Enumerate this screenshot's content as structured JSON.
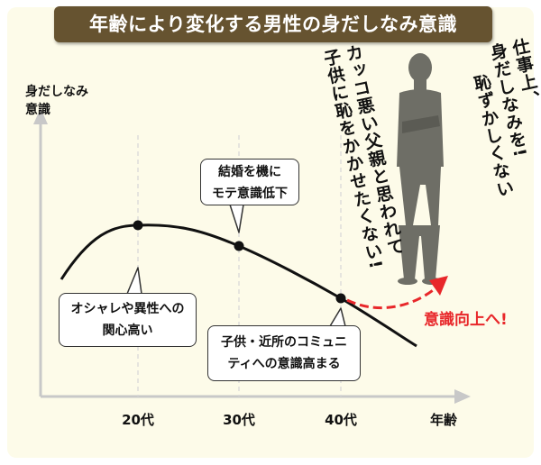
{
  "title": "年齢により変化する男性の身だしなみ意識",
  "chart_data": {
    "type": "line",
    "ylabel_lines": [
      "身だしなみ",
      "意識"
    ],
    "xlabel": "年齢",
    "categories": [
      "20代",
      "30代",
      "40代"
    ],
    "annotations": [
      {
        "lines": [
          "オシャレや異性への",
          "関心高い"
        ],
        "at": "20代"
      },
      {
        "lines": [
          "結婚を機に",
          "モテ意識低下"
        ],
        "at": "30代"
      },
      {
        "lines": [
          "子供・近所のコミュニ",
          "ティへの意識高まる"
        ],
        "at": "40代"
      }
    ],
    "trend_label": "意識向上へ!",
    "grid": false
  },
  "quotes": {
    "father": [
      "カッコ悪い父親と思われて",
      "子供に恥をかかせたくない!"
    ],
    "work": [
      "仕事上、",
      "身だしなみを!",
      "恥ずかしくない"
    ]
  },
  "colors": {
    "accent": "#e8272a",
    "title_bg": "#665330",
    "panel_bg": "#fdfbe9",
    "silhouette": "#6e6e66"
  }
}
